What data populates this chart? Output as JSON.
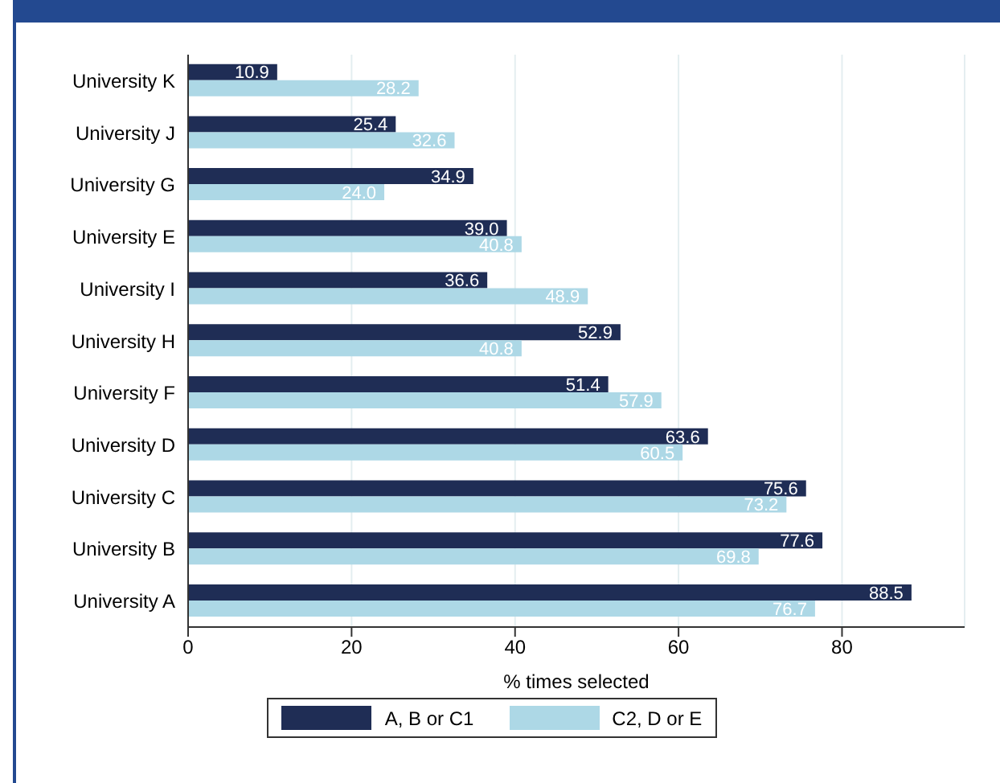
{
  "chart_data": {
    "type": "bar",
    "orientation": "horizontal",
    "categories": [
      "University K",
      "University J",
      "University G",
      "University E",
      "University I",
      "University H",
      "University F",
      "University D",
      "University C",
      "University B",
      "University A"
    ],
    "series": [
      {
        "name": "A, B or C1",
        "color": "#1f2d55",
        "values": [
          10.9,
          25.4,
          34.9,
          39.0,
          36.6,
          52.9,
          51.4,
          63.6,
          75.6,
          77.6,
          88.5
        ],
        "value_labels": [
          "10.9",
          "25.4",
          "34.9",
          "39.0",
          "36.6",
          "52.9",
          "51.4",
          "63.6",
          "75.6",
          "77.6",
          "88.5"
        ]
      },
      {
        "name": "C2, D or E",
        "color": "#add8e6",
        "values": [
          28.2,
          32.6,
          24.0,
          40.8,
          48.9,
          40.8,
          57.9,
          60.5,
          73.2,
          69.8,
          76.7
        ],
        "value_labels": [
          "28.2",
          "32.6",
          "24.0",
          "40.8",
          "48.9",
          "40.8",
          "57.9",
          "60.5",
          "73.2",
          "69.8",
          "76.7"
        ]
      }
    ],
    "xlabel": "% times selected",
    "xlim": [
      0,
      95
    ],
    "xticks": [
      0,
      20,
      40,
      60,
      80
    ],
    "grid": "x",
    "legend": "bottom"
  }
}
